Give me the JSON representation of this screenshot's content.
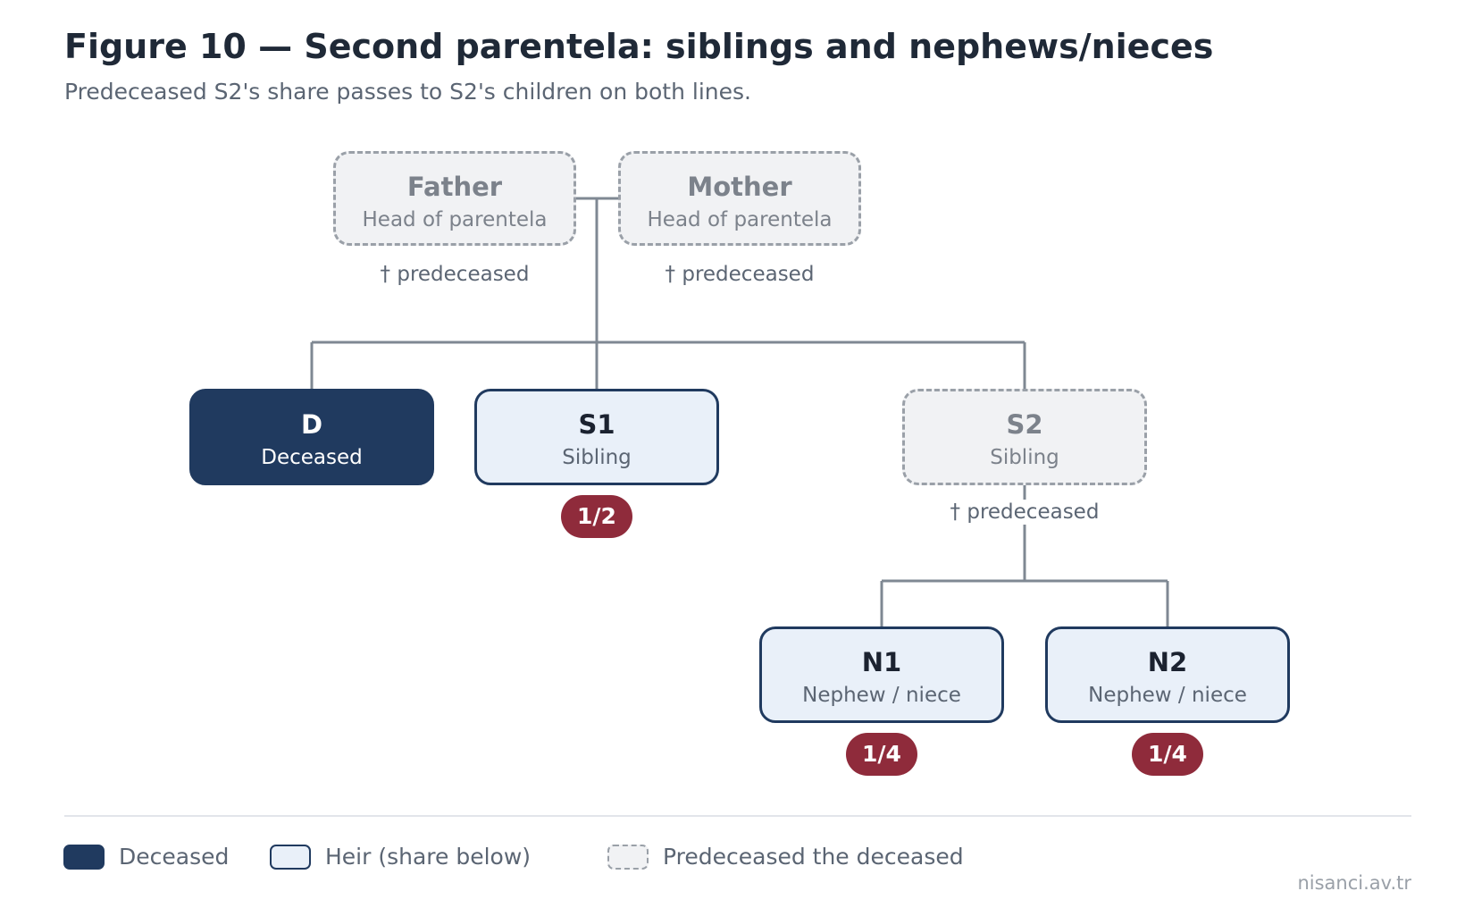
{
  "header": {
    "title": "Figure 10 — Second parentela: siblings and nephews/nieces",
    "subtitle": "Predeceased S2's share passes to S2's children on both lines."
  },
  "nodes": {
    "father": {
      "name": "Father",
      "role": "Head of parentela",
      "status": "predeceased",
      "note": "† predeceased"
    },
    "mother": {
      "name": "Mother",
      "role": "Head of parentela",
      "status": "predeceased",
      "note": "† predeceased"
    },
    "d": {
      "name": "D",
      "role": "Deceased",
      "status": "deceased"
    },
    "s1": {
      "name": "S1",
      "role": "Sibling",
      "status": "heir",
      "share": "1/2"
    },
    "s2": {
      "name": "S2",
      "role": "Sibling",
      "status": "predeceased",
      "note": "† predeceased"
    },
    "n1": {
      "name": "N1",
      "role": "Nephew / niece",
      "status": "heir",
      "share": "1/4"
    },
    "n2": {
      "name": "N2",
      "role": "Nephew / niece",
      "status": "heir",
      "share": "1/4"
    }
  },
  "legend": {
    "deceased": "Deceased",
    "heir": "Heir (share below)",
    "predeceased": "Predeceased the deceased"
  },
  "credit": "nisanci.av.tr",
  "colors": {
    "deceased_fill": "#203a5f",
    "heir_fill": "#e9f0f9",
    "predeceased_fill": "#f1f2f4",
    "share_badge": "#8f2b3b",
    "connector": "#7f8893"
  }
}
